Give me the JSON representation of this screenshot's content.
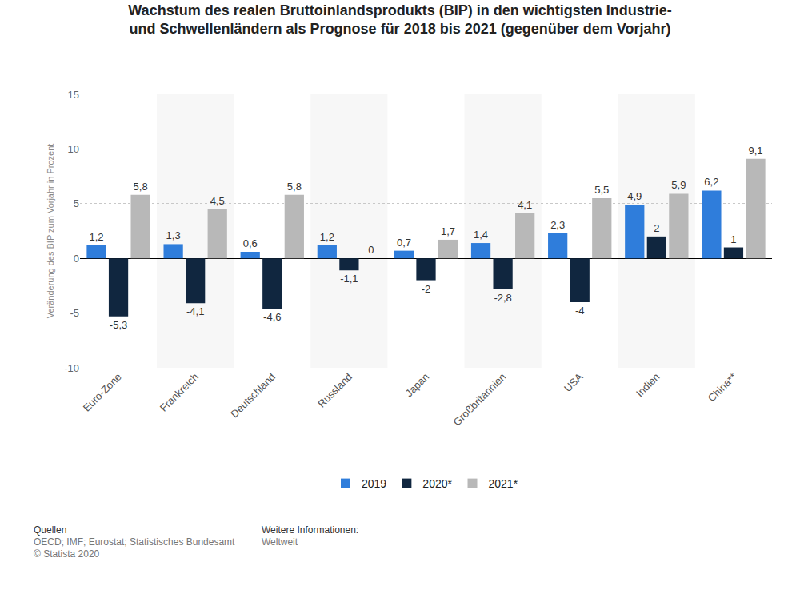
{
  "chart_data": {
    "type": "bar",
    "title": "Wachstum des realen Bruttoinlandsprodukts (BIP) in den wichtigsten Industrie- und Schwellenländern als Prognose für 2018 bis 2021 (gegenüber dem Vorjahr)",
    "y_label": "Veränderung des BIP zum Vorjahr in Prozent",
    "categories": [
      "Euro-Zone",
      "Frankreich",
      "Deutschland",
      "Russland",
      "Japan",
      "Großbritannien",
      "USA",
      "Indien",
      "China**"
    ],
    "series": [
      {
        "name": "2019",
        "color": "#2f7ddb",
        "values": [
          1.2,
          1.3,
          0.6,
          1.2,
          0.7,
          1.4,
          2.3,
          4.9,
          6.2
        ],
        "value_labels": [
          "1,2",
          "1,3",
          "0,6",
          "1,2",
          "0,7",
          "1,4",
          "2,3",
          "4,9",
          "6,2"
        ]
      },
      {
        "name": "2020*",
        "color": "#10263f",
        "values": [
          -5.3,
          -4.1,
          -4.6,
          -1.1,
          -2,
          -2.8,
          -4,
          2,
          1
        ],
        "value_labels": [
          "-5,3",
          "-4,1",
          "-4,6",
          "-1,1",
          "-2",
          "-2,8",
          "-4",
          "2",
          "1"
        ]
      },
      {
        "name": "2021*",
        "color": "#b8b8b8",
        "values": [
          5.8,
          4.5,
          5.8,
          0,
          1.7,
          4.1,
          5.5,
          5.9,
          9.1
        ],
        "value_labels": [
          "5,8",
          "4,5",
          "5,8",
          "0",
          "1,7",
          "4,1",
          "5,5",
          "5,9",
          "9,1"
        ]
      }
    ],
    "ylim": [
      -10,
      15
    ],
    "yticks": [
      -10,
      -5,
      0,
      5,
      10,
      15
    ],
    "grid": true,
    "legend": "bottom",
    "data_labels": true,
    "annotations": [
      "Quellen",
      "OECD; IMF; Eurostat; Statistisches Bundesamt",
      "© Statista 2020",
      "Weitere Informationen:",
      "Weltweit"
    ]
  }
}
